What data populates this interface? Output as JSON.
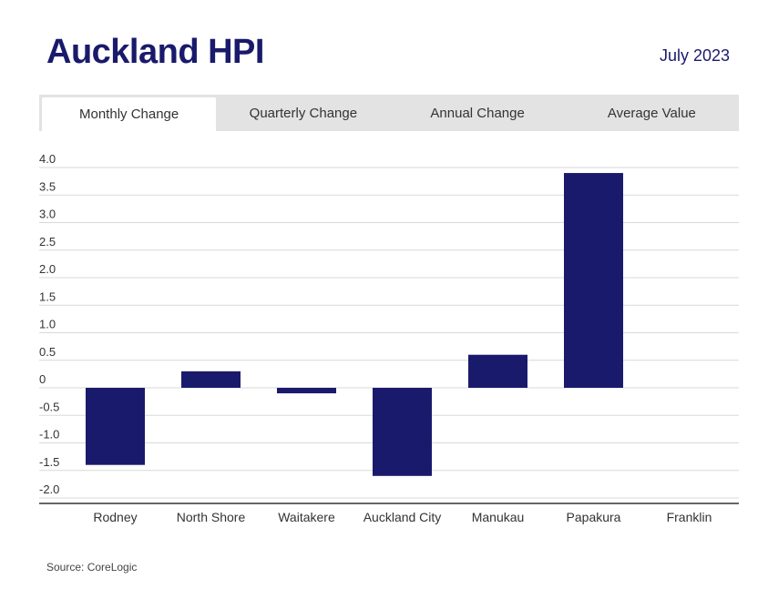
{
  "header": {
    "title": "Auckland HPI",
    "date": "July 2023"
  },
  "tabs": [
    {
      "label": "Monthly Change"
    },
    {
      "label": "Quarterly Change"
    },
    {
      "label": "Annual Change"
    },
    {
      "label": "Average Value"
    }
  ],
  "colors": {
    "bar": "#1a1a6c",
    "tab_bg": "#e3e3e3",
    "title": "#1a1a6c"
  },
  "chart_data": {
    "type": "bar",
    "title": "",
    "xlabel": "",
    "ylabel": "",
    "categories": [
      "Rodney",
      "North Shore",
      "Waitakere",
      "Auckland City",
      "Manukau",
      "Papakura",
      "Franklin"
    ],
    "values": [
      -1.4,
      0.3,
      -0.1,
      -1.6,
      0.6,
      3.9,
      0
    ],
    "yticks": [
      "4.0",
      "3.5",
      "3.0",
      "2.5",
      "2.0",
      "1.5",
      "1.0",
      "0.5",
      "0",
      "-0.5",
      "-1.0",
      "-1.5",
      "-2.0"
    ],
    "ylim": [
      -2.0,
      4.0
    ]
  },
  "footer": {
    "source": "Source: CoreLogic"
  }
}
